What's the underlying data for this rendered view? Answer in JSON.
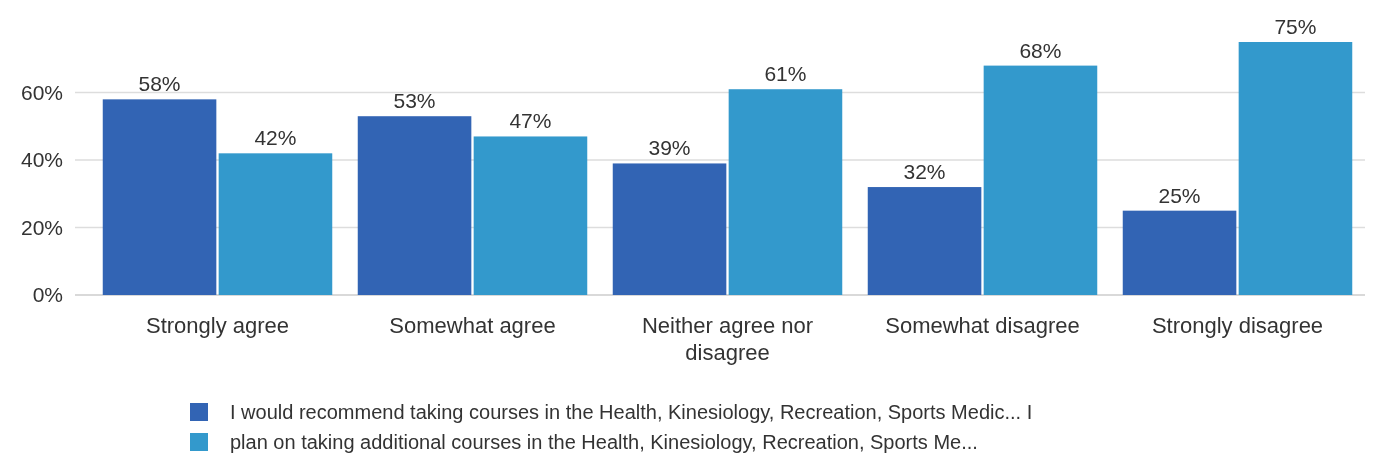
{
  "chart_data": {
    "type": "bar",
    "categories": [
      "Strongly agree",
      "Somewhat agree",
      "Neither agree nor disagree",
      "Somewhat disagree",
      "Strongly disagree"
    ],
    "series": [
      {
        "name": "I would recommend taking courses in the Health, Kinesiology, Recreation, Sports Medic... I",
        "color": "#3264b4",
        "values": [
          58,
          53,
          39,
          32,
          25
        ],
        "value_labels": [
          "58%",
          "53%",
          "39%",
          "32%",
          "25%"
        ]
      },
      {
        "name": "plan on taking additional courses in the Health, Kinesiology, Recreation, Sports Me...",
        "color": "#3399cc",
        "values": [
          42,
          47,
          61,
          68,
          75
        ],
        "value_labels": [
          "42%",
          "47%",
          "61%",
          "68%",
          "75%"
        ]
      }
    ],
    "ylim": [
      0,
      75
    ],
    "yticks": [
      {
        "value": 0,
        "label": "0%"
      },
      {
        "value": 20,
        "label": "20%"
      },
      {
        "value": 40,
        "label": "40%"
      },
      {
        "value": 60,
        "label": "60%"
      }
    ],
    "grid": "y",
    "legend": "bottom"
  }
}
